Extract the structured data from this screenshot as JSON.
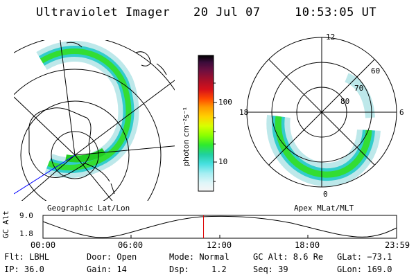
{
  "header": {
    "title": "Ultraviolet Imager",
    "date": "20 Jul 07",
    "time": "10:53:05 UT"
  },
  "left_panel": {
    "caption": "Geographic Lat/Lon"
  },
  "right_panel": {
    "caption": "Apex MLat/MLT",
    "hour_labels": {
      "top": "12",
      "left": "18",
      "right": "6",
      "bottom": "0"
    },
    "lat_labels": [
      "60",
      "70",
      "80"
    ]
  },
  "colorbar": {
    "unit_label": "photon cm⁻²s⁻¹",
    "ticks": [
      "100",
      "10"
    ],
    "scale": "log",
    "colors_top_to_bottom": [
      "#000000",
      "#3a0b3a",
      "#6d0f40",
      "#a50f2a",
      "#d6101a",
      "#ff4a00",
      "#ff9900",
      "#ffd000",
      "#d8ff00",
      "#8aff00",
      "#2eea2e",
      "#20d0a0",
      "#48e0e0",
      "#a6eef2",
      "#e0f6f8",
      "#f6f6f6"
    ]
  },
  "timeline": {
    "axis_label": "GC Alt",
    "y_max": "9.0",
    "y_min": "1.8",
    "ticks": [
      "00:00",
      "06:00",
      "12:00",
      "18:00",
      "23:59"
    ],
    "current_time_fraction": 0.454
  },
  "status": {
    "filter": "Flt: LBHL",
    "ip": "IP: 36.0",
    "door": "Door: Open",
    "gain": "Gain: 14",
    "mode": "Mode: Normal",
    "dsp_label": "Dsp:",
    "dsp_value": "1.2",
    "gc_alt": "GC Alt: 8.6 Re",
    "seq": "Seq: 39",
    "glat": "GLat: −73.1",
    "glon": "GLon: 169.0"
  },
  "colors": {
    "aurora_green": "#33dd33",
    "aurora_cyan": "#33cccc",
    "aurora_pale": "#bde8ea",
    "track_blue": "#0000ff",
    "marker_red": "#dd0000"
  }
}
